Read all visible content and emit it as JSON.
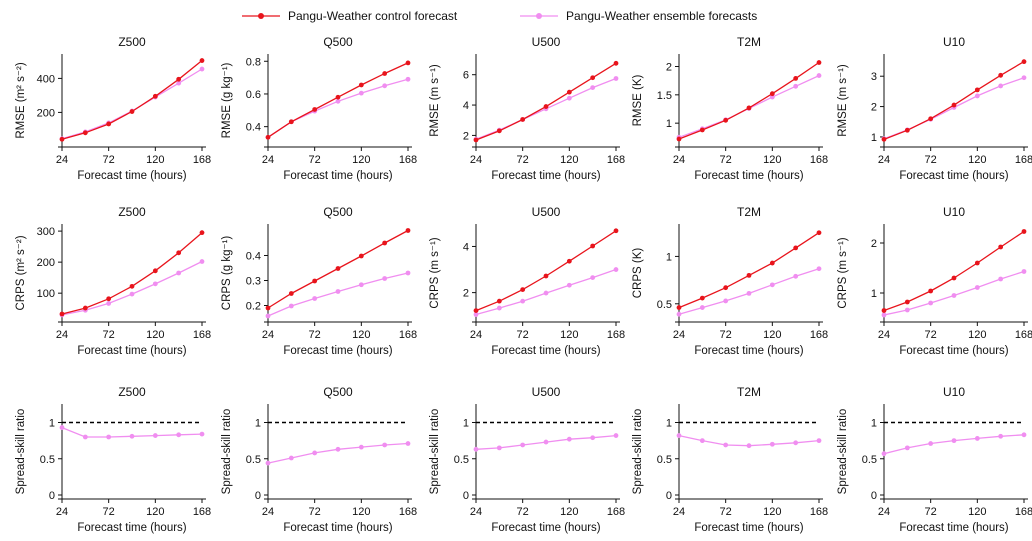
{
  "legend": {
    "control": "Pangu-Weather control forecast",
    "ensemble": "Pangu-Weather ensemble forecasts"
  },
  "colors": {
    "control": "#e8141c",
    "ensemble": "#f08ef0",
    "axis": "#111111",
    "ref_line": "#000000"
  },
  "chart_data": [
    {
      "type": "line",
      "row": "RMSE",
      "title": "Z500",
      "xlabel": "Forecast time (hours)",
      "ylabel": "RMSE (m² s⁻²)",
      "x": [
        24,
        48,
        72,
        96,
        120,
        144,
        168
      ],
      "xticks": [
        24,
        72,
        120,
        168
      ],
      "ylim": [
        20,
        520
      ],
      "yticks": [
        200,
        400
      ],
      "series": [
        {
          "name": "Pangu-Weather control forecast",
          "values": [
            42,
            80,
            132,
            205,
            295,
            395,
            505
          ]
        },
        {
          "name": "Pangu-Weather ensemble forecasts",
          "values": [
            45,
            85,
            138,
            208,
            290,
            372,
            455
          ]
        }
      ]
    },
    {
      "type": "line",
      "row": "RMSE",
      "title": "Q500",
      "xlabel": "Forecast time (hours)",
      "ylabel": "RMSE (g kg⁻¹)",
      "x": [
        24,
        48,
        72,
        96,
        120,
        144,
        168
      ],
      "xticks": [
        24,
        72,
        120,
        168
      ],
      "ylim": [
        0.3,
        0.82
      ],
      "yticks": [
        0.4,
        0.6,
        0.8
      ],
      "series": [
        {
          "name": "Pangu-Weather control forecast",
          "values": [
            0.335,
            0.43,
            0.505,
            0.58,
            0.655,
            0.725,
            0.79
          ]
        },
        {
          "name": "Pangu-Weather ensemble forecasts",
          "values": [
            0.335,
            0.43,
            0.495,
            0.555,
            0.605,
            0.65,
            0.69
          ]
        }
      ]
    },
    {
      "type": "line",
      "row": "RMSE",
      "title": "U500",
      "xlabel": "Forecast time (hours)",
      "ylabel": "RMSE (m s⁻¹)",
      "x": [
        24,
        48,
        72,
        96,
        120,
        144,
        168
      ],
      "xticks": [
        24,
        72,
        120,
        168
      ],
      "ylim": [
        1.5,
        7.1
      ],
      "yticks": [
        2,
        4,
        6
      ],
      "series": [
        {
          "name": "Pangu-Weather control forecast",
          "values": [
            1.7,
            2.3,
            3.05,
            3.9,
            4.85,
            5.8,
            6.75
          ]
        },
        {
          "name": "Pangu-Weather ensemble forecasts",
          "values": [
            1.75,
            2.35,
            3.05,
            3.75,
            4.45,
            5.15,
            5.75
          ]
        }
      ]
    },
    {
      "type": "line",
      "row": "RMSE",
      "title": "T2M",
      "xlabel": "Forecast time (hours)",
      "ylabel": "RMSE (K)",
      "x": [
        24,
        48,
        72,
        96,
        120,
        144,
        168
      ],
      "xticks": [
        24,
        72,
        120,
        168
      ],
      "ylim": [
        0.65,
        2.15
      ],
      "yticks": [
        1.0,
        1.5,
        2.0
      ],
      "series": [
        {
          "name": "Pangu-Weather control forecast",
          "values": [
            0.72,
            0.88,
            1.05,
            1.27,
            1.52,
            1.79,
            2.07
          ]
        },
        {
          "name": "Pangu-Weather ensemble forecasts",
          "values": [
            0.75,
            0.9,
            1.06,
            1.26,
            1.46,
            1.65,
            1.84
          ]
        }
      ]
    },
    {
      "type": "line",
      "row": "RMSE",
      "title": "U10",
      "xlabel": "Forecast time (hours)",
      "ylabel": "RMSE (m s⁻¹)",
      "x": [
        24,
        48,
        72,
        96,
        120,
        144,
        168
      ],
      "xticks": [
        24,
        72,
        120,
        168
      ],
      "ylim": [
        0.8,
        3.6
      ],
      "yticks": [
        1,
        2,
        3
      ],
      "series": [
        {
          "name": "Pangu-Weather control forecast",
          "values": [
            0.92,
            1.22,
            1.6,
            2.05,
            2.55,
            3.03,
            3.48
          ]
        },
        {
          "name": "Pangu-Weather ensemble forecasts",
          "values": [
            0.94,
            1.23,
            1.58,
            1.97,
            2.35,
            2.68,
            2.95
          ]
        }
      ]
    },
    {
      "type": "line",
      "row": "CRPS",
      "title": "Z500",
      "xlabel": "Forecast time (hours)",
      "ylabel": "CRPS (m² s⁻²)",
      "x": [
        24,
        48,
        72,
        96,
        120,
        144,
        168
      ],
      "xticks": [
        24,
        72,
        120,
        168
      ],
      "ylim": [
        20,
        310
      ],
      "yticks": [
        100,
        200,
        300
      ],
      "series": [
        {
          "name": "Pangu-Weather control forecast",
          "values": [
            33,
            52,
            82,
            122,
            172,
            230,
            295
          ]
        },
        {
          "name": "Pangu-Weather ensemble forecasts",
          "values": [
            30,
            45,
            67,
            97,
            130,
            165,
            202
          ]
        }
      ]
    },
    {
      "type": "line",
      "row": "CRPS",
      "title": "Q500",
      "xlabel": "Forecast time (hours)",
      "ylabel": "CRPS (g kg⁻¹)",
      "x": [
        24,
        48,
        72,
        96,
        120,
        144,
        168
      ],
      "xticks": [
        24,
        72,
        120,
        168
      ],
      "ylim": [
        0.15,
        0.51
      ],
      "yticks": [
        0.2,
        0.3,
        0.4
      ],
      "series": [
        {
          "name": "Pangu-Weather control forecast",
          "values": [
            0.19,
            0.248,
            0.298,
            0.348,
            0.398,
            0.45,
            0.5
          ]
        },
        {
          "name": "Pangu-Weather ensemble forecasts",
          "values": [
            0.158,
            0.198,
            0.228,
            0.256,
            0.283,
            0.308,
            0.33
          ]
        }
      ]
    },
    {
      "type": "line",
      "row": "CRPS",
      "title": "U500",
      "xlabel": "Forecast time (hours)",
      "ylabel": "CRPS (m s⁻¹)",
      "x": [
        24,
        48,
        72,
        96,
        120,
        144,
        168
      ],
      "xticks": [
        24,
        72,
        120,
        168
      ],
      "ylim": [
        0.9,
        4.8
      ],
      "yticks": [
        2,
        4
      ],
      "series": [
        {
          "name": "Pangu-Weather control forecast",
          "values": [
            1.22,
            1.63,
            2.13,
            2.72,
            3.36,
            4.02,
            4.68
          ]
        },
        {
          "name": "Pangu-Weather ensemble forecasts",
          "values": [
            1.05,
            1.33,
            1.63,
            1.98,
            2.32,
            2.65,
            3.0
          ]
        }
      ]
    },
    {
      "type": "line",
      "row": "CRPS",
      "title": "T2M",
      "xlabel": "Forecast time (hours)",
      "ylabel": "CRPS (K)",
      "x": [
        24,
        48,
        72,
        96,
        120,
        144,
        168
      ],
      "xticks": [
        24,
        72,
        120,
        168
      ],
      "ylim": [
        0.35,
        1.3
      ],
      "yticks": [
        0.5,
        1.0
      ],
      "series": [
        {
          "name": "Pangu-Weather control forecast",
          "values": [
            0.46,
            0.56,
            0.67,
            0.8,
            0.93,
            1.09,
            1.25
          ]
        },
        {
          "name": "Pangu-Weather ensemble forecasts",
          "values": [
            0.39,
            0.46,
            0.53,
            0.61,
            0.7,
            0.79,
            0.87
          ]
        }
      ]
    },
    {
      "type": "line",
      "row": "CRPS",
      "title": "U10",
      "xlabel": "Forecast time (hours)",
      "ylabel": "CRPS (m s⁻¹)",
      "x": [
        24,
        48,
        72,
        96,
        120,
        144,
        168
      ],
      "xticks": [
        24,
        72,
        120,
        168
      ],
      "ylim": [
        0.5,
        2.3
      ],
      "yticks": [
        1,
        2
      ],
      "series": [
        {
          "name": "Pangu-Weather control forecast",
          "values": [
            0.65,
            0.82,
            1.04,
            1.3,
            1.6,
            1.92,
            2.23
          ]
        },
        {
          "name": "Pangu-Weather ensemble forecasts",
          "values": [
            0.56,
            0.66,
            0.8,
            0.95,
            1.11,
            1.28,
            1.43
          ]
        }
      ]
    },
    {
      "type": "line",
      "row": "Spread-skill",
      "title": "Z500",
      "xlabel": "Forecast time (hours)",
      "ylabel": "Spread-skill ratio",
      "x": [
        24,
        48,
        72,
        96,
        120,
        144,
        168
      ],
      "xticks": [
        24,
        72,
        120,
        168
      ],
      "ylim": [
        0,
        1.2
      ],
      "yticks": [
        0,
        0.5,
        1.0
      ],
      "reference_line": 1.0,
      "series": [
        {
          "name": "Pangu-Weather ensemble forecasts",
          "values": [
            0.93,
            0.8,
            0.8,
            0.81,
            0.82,
            0.83,
            0.84
          ]
        }
      ]
    },
    {
      "type": "line",
      "row": "Spread-skill",
      "title": "Q500",
      "xlabel": "Forecast time (hours)",
      "ylabel": "Spread-skill ratio",
      "x": [
        24,
        48,
        72,
        96,
        120,
        144,
        168
      ],
      "xticks": [
        24,
        72,
        120,
        168
      ],
      "ylim": [
        0,
        1.2
      ],
      "yticks": [
        0,
        0.5,
        1.0
      ],
      "reference_line": 1.0,
      "series": [
        {
          "name": "Pangu-Weather ensemble forecasts",
          "values": [
            0.44,
            0.51,
            0.58,
            0.63,
            0.66,
            0.69,
            0.71
          ]
        }
      ]
    },
    {
      "type": "line",
      "row": "Spread-skill",
      "title": "U500",
      "xlabel": "Forecast time (hours)",
      "ylabel": "Spread-skill ratio",
      "x": [
        24,
        48,
        72,
        96,
        120,
        144,
        168
      ],
      "xticks": [
        24,
        72,
        120,
        168
      ],
      "ylim": [
        0,
        1.2
      ],
      "yticks": [
        0,
        0.5,
        1.0
      ],
      "reference_line": 1.0,
      "series": [
        {
          "name": "Pangu-Weather ensemble forecasts",
          "values": [
            0.63,
            0.65,
            0.69,
            0.73,
            0.77,
            0.79,
            0.82
          ]
        }
      ]
    },
    {
      "type": "line",
      "row": "Spread-skill",
      "title": "T2M",
      "xlabel": "Forecast time (hours)",
      "ylabel": "Spread-skill ratio",
      "x": [
        24,
        48,
        72,
        96,
        120,
        144,
        168
      ],
      "xticks": [
        24,
        72,
        120,
        168
      ],
      "ylim": [
        0,
        1.2
      ],
      "yticks": [
        0,
        0.5,
        1.0
      ],
      "reference_line": 1.0,
      "series": [
        {
          "name": "Pangu-Weather ensemble forecasts",
          "values": [
            0.82,
            0.75,
            0.69,
            0.68,
            0.7,
            0.72,
            0.75
          ]
        }
      ]
    },
    {
      "type": "line",
      "row": "Spread-skill",
      "title": "U10",
      "xlabel": "Forecast time (hours)",
      "ylabel": "Spread-skill ratio",
      "x": [
        24,
        48,
        72,
        96,
        120,
        144,
        168
      ],
      "xticks": [
        24,
        72,
        120,
        168
      ],
      "ylim": [
        0,
        1.2
      ],
      "yticks": [
        0,
        0.5,
        1.0
      ],
      "reference_line": 1.0,
      "series": [
        {
          "name": "Pangu-Weather ensemble forecasts",
          "values": [
            0.57,
            0.65,
            0.71,
            0.75,
            0.78,
            0.81,
            0.83
          ]
        }
      ]
    }
  ]
}
